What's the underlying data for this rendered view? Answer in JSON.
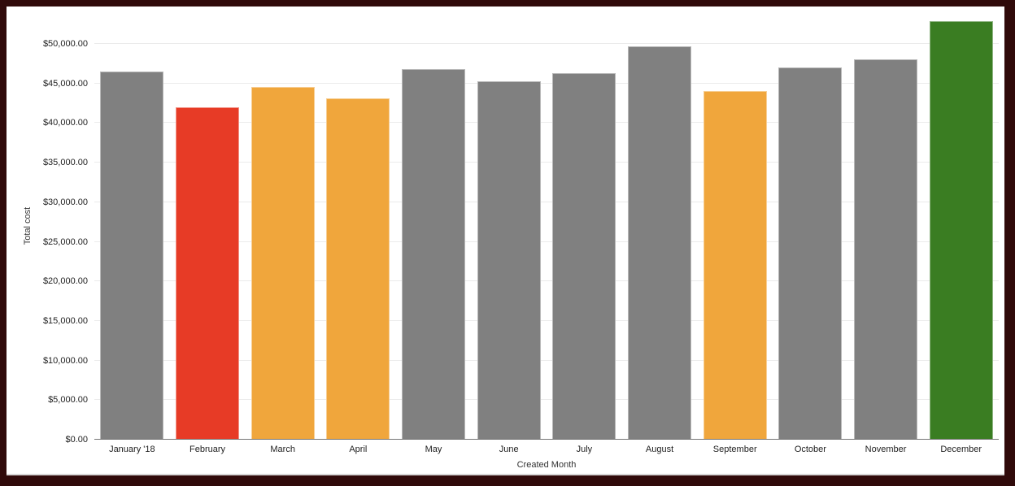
{
  "frame": {
    "background_color": "#300A0A",
    "card_background": "#FFFFFF"
  },
  "chart_data": {
    "type": "bar",
    "title": "",
    "xlabel": "Created Month",
    "ylabel": "Total cost",
    "categories": [
      "January '18",
      "February",
      "March",
      "April",
      "May",
      "June",
      "July",
      "August",
      "September",
      "October",
      "November",
      "December"
    ],
    "values": [
      46500,
      42000,
      44600,
      43100,
      46850,
      45250,
      46350,
      49700,
      44050,
      47000,
      48000,
      52850
    ],
    "bar_colors": [
      "#808080",
      "#E73B26",
      "#F0A63C",
      "#F0A63C",
      "#808080",
      "#808080",
      "#808080",
      "#808080",
      "#F0A63C",
      "#808080",
      "#808080",
      "#3A7D22"
    ],
    "y_ticks": [
      {
        "value": 0,
        "label": "$0.00"
      },
      {
        "value": 5000,
        "label": "$5,000.00"
      },
      {
        "value": 10000,
        "label": "$10,000.00"
      },
      {
        "value": 15000,
        "label": "$15,000.00"
      },
      {
        "value": 20000,
        "label": "$20,000.00"
      },
      {
        "value": 25000,
        "label": "$25,000.00"
      },
      {
        "value": 30000,
        "label": "$30,000.00"
      },
      {
        "value": 35000,
        "label": "$35,000.00"
      },
      {
        "value": 40000,
        "label": "$40,000.00"
      },
      {
        "value": 45000,
        "label": "$45,000.00"
      },
      {
        "value": 50000,
        "label": "$50,000.00"
      }
    ],
    "ylim": [
      0,
      54000
    ],
    "grid": true,
    "legend": "none",
    "colors": {
      "default_bar": "#808080",
      "low_bar": "#E73B26",
      "mid_bar": "#F0A63C",
      "high_bar": "#3A7D22",
      "gridline": "#EBEBEB",
      "axis_line": "#757575",
      "tick_text": "#212121",
      "axis_title_text": "#333333"
    }
  }
}
